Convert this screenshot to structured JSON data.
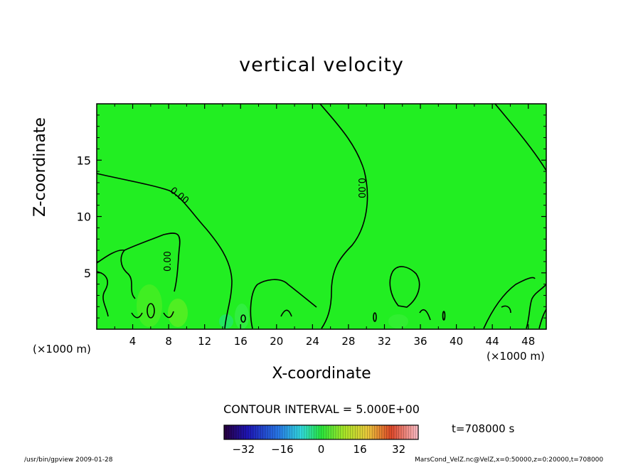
{
  "title": "vertical velocity",
  "xlabel": "X-coordinate",
  "ylabel": "Z-coordinate",
  "x_unit_left": "(×1000 m)",
  "x_unit_right": "(×1000 m)",
  "contour_interval": "CONTOUR INTERVAL = 5.000E+00",
  "time_label": "t=708000 s",
  "footer_left": "/usr/bin/gpview   2009-01-28",
  "footer_right": "MarsCond_VelZ.nc@VelZ,x=0:50000,z=0:20000,t=708000",
  "colors": {
    "field": "#22ee22",
    "contour": "#000000"
  },
  "contour_labels": [
    "0.00",
    "0.00",
    "0.00"
  ],
  "chart_data": {
    "type": "heatmap",
    "title": "vertical velocity",
    "xlabel": "X-coordinate",
    "ylabel": "Z-coordinate",
    "xlim": [
      0,
      50
    ],
    "ylim": [
      0,
      20
    ],
    "x_ticks": [
      "4",
      "8",
      "12",
      "16",
      "20",
      "24",
      "28",
      "32",
      "36",
      "40",
      "44",
      "48"
    ],
    "y_ticks": [
      "5",
      "10",
      "15"
    ],
    "colorbar": {
      "ticks": [
        "−32",
        "−16",
        "0",
        "16",
        "32"
      ],
      "range": [
        -40,
        40
      ]
    },
    "contour_interval": 5.0,
    "contour_levels": [
      0.0
    ],
    "value_description_dominant": 0.0
  }
}
